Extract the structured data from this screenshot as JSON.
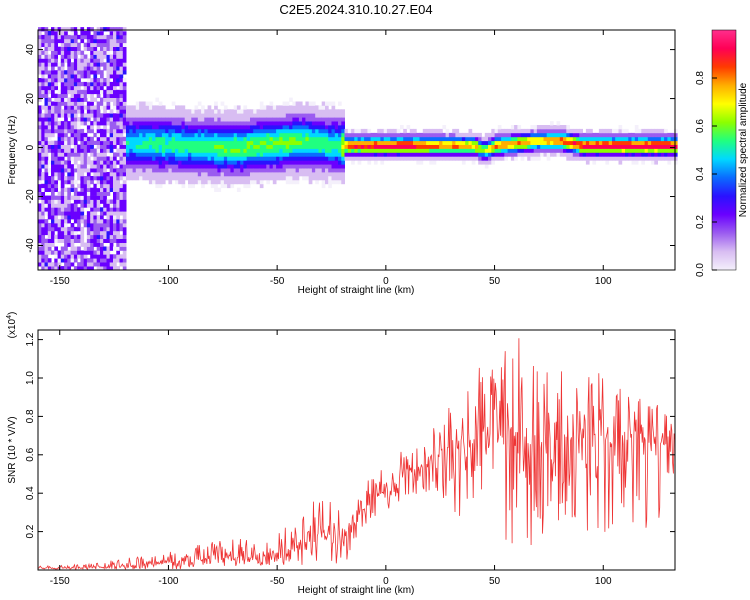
{
  "title": "C2E5.2024.310.10.27.E04",
  "colormap": [
    "#f4f0fb",
    "#d8bdf2",
    "#9b5cf0",
    "#6a00ff",
    "#2a12ff",
    "#0a6cff",
    "#00d8ff",
    "#20ff80",
    "#8cff00",
    "#ffff00",
    "#ffae00",
    "#ff3b00",
    "#ff0055",
    "#ff2e8c"
  ],
  "chart_data": [
    {
      "type": "heatmap",
      "xlabel": "Height of straight line (km)",
      "ylabel": "Frequency (Hz)",
      "xlim": [
        -160,
        133
      ],
      "ylim": [
        -50,
        48
      ],
      "xticks": [
        -150,
        -100,
        -50,
        0,
        50,
        100
      ],
      "xtick_labels": [
        "-150",
        "-100",
        "-50",
        "0",
        "50",
        "100"
      ],
      "yticks": [
        -40,
        -20,
        0,
        20,
        40
      ],
      "ytick_labels": [
        "-40",
        "-20",
        "0",
        "20",
        "40"
      ],
      "colorbar": {
        "label": "Normalized spectral amplitude",
        "range": [
          0.0,
          1.0
        ],
        "ticks": [
          0.0,
          0.2,
          0.4,
          0.6,
          0.8
        ],
        "tick_labels": [
          "0.0",
          "0.2",
          "0.4",
          "0.6",
          "0.8"
        ]
      },
      "ridge": {
        "x": [
          -160,
          -130,
          -110,
          -90,
          -70,
          -50,
          -40,
          -30,
          -22,
          -18,
          0,
          10,
          20,
          30,
          40,
          45,
          50,
          60,
          70,
          80,
          90,
          100,
          110,
          120,
          133
        ],
        "frequency": [
          0,
          1,
          1,
          0,
          -1,
          1,
          2,
          1,
          0,
          0,
          0,
          0,
          0,
          0,
          0,
          -2,
          0,
          1,
          2,
          2,
          0,
          0,
          0,
          0,
          0
        ],
        "amplitude": [
          0.3,
          0.35,
          0.5,
          0.5,
          0.55,
          0.55,
          0.55,
          0.5,
          0.5,
          0.85,
          0.9,
          0.9,
          0.8,
          0.8,
          0.7,
          0.6,
          0.8,
          0.75,
          0.7,
          0.8,
          0.9,
          0.9,
          0.9,
          0.9,
          0.9
        ]
      }
    },
    {
      "type": "line",
      "xlabel": "Height of straight line (km)",
      "ylabel": "SNR (10 * V/V)",
      "multiplier_label": "(x10",
      "multiplier_exp": "4",
      "multiplier_close": ")",
      "xlim": [
        -160,
        133
      ],
      "ylim": [
        0,
        1.25
      ],
      "xticks": [
        -150,
        -100,
        -50,
        0,
        50,
        100
      ],
      "xtick_labels": [
        "-150",
        "-100",
        "-50",
        "0",
        "50",
        "100"
      ],
      "yticks": [
        0.2,
        0.4,
        0.6,
        0.8,
        1.0,
        1.2
      ],
      "ytick_labels": [
        "0.2",
        "0.4",
        "0.6",
        "0.8",
        "1.0",
        "1.2"
      ],
      "color": "#ee3333",
      "series": [
        {
          "x": [
            -160,
            -140,
            -120,
            -100,
            -80,
            -60,
            -50,
            -40,
            -30,
            -20,
            -10,
            0,
            10,
            20,
            25,
            30,
            40,
            50,
            60,
            70,
            80,
            90,
            100,
            110,
            120,
            133
          ],
          "mean": [
            0.01,
            0.01,
            0.02,
            0.04,
            0.06,
            0.07,
            0.08,
            0.12,
            0.2,
            0.18,
            0.32,
            0.42,
            0.5,
            0.52,
            0.62,
            0.66,
            0.7,
            0.68,
            0.72,
            0.66,
            0.7,
            0.68,
            0.7,
            0.65,
            0.66,
            0.65
          ],
          "upper": [
            0.02,
            0.03,
            0.06,
            0.12,
            0.15,
            0.18,
            0.2,
            0.3,
            0.45,
            0.3,
            0.45,
            0.55,
            0.65,
            0.7,
            0.9,
            0.95,
            1.05,
            1.1,
            1.25,
            1.1,
            1.05,
            1.0,
            1.05,
            1.0,
            0.9,
            0.8
          ],
          "lower": [
            0.0,
            0.0,
            0.0,
            0.0,
            0.0,
            0.02,
            0.02,
            0.02,
            0.05,
            0.02,
            0.18,
            0.3,
            0.38,
            0.4,
            0.35,
            0.3,
            0.25,
            0.2,
            0.05,
            0.15,
            0.2,
            0.2,
            0.2,
            0.15,
            0.2,
            0.3
          ]
        }
      ]
    }
  ]
}
